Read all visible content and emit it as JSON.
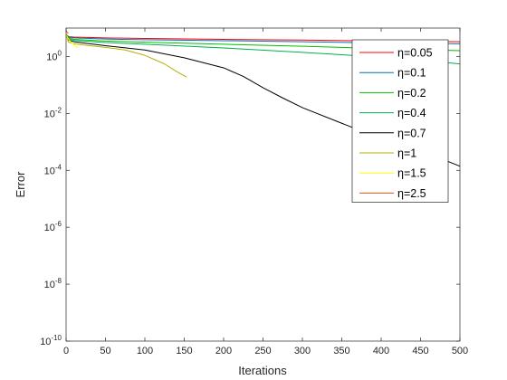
{
  "chart_data": {
    "type": "line",
    "xlabel": "Iterations",
    "ylabel": "Error",
    "xlim": [
      0,
      500
    ],
    "ylim": [
      1e-10,
      10
    ],
    "yscale": "log",
    "grid": false,
    "legend_position": "top-right",
    "x_ticks": [
      "0",
      "50",
      "100",
      "150",
      "200",
      "250",
      "300",
      "350",
      "400",
      "450",
      "500"
    ],
    "y_ticks": [
      {
        "base": "10",
        "exp": "0",
        "value": 1
      },
      {
        "base": "10",
        "exp": "-2",
        "value": 0.01
      },
      {
        "base": "10",
        "exp": "-4",
        "value": 0.0001
      },
      {
        "base": "10",
        "exp": "-6",
        "value": 1e-06
      },
      {
        "base": "10",
        "exp": "-8",
        "value": 1e-08
      },
      {
        "base": "10",
        "exp": "-10",
        "value": 1e-10
      }
    ],
    "series": [
      {
        "name": "η=0.05",
        "color": "#ff0000",
        "x": [
          0,
          3,
          10,
          50,
          100,
          200,
          300,
          400,
          500
        ],
        "y": [
          6.0,
          5.0,
          4.8,
          4.5,
          4.3,
          4.0,
          3.8,
          3.5,
          3.3
        ]
      },
      {
        "name": "η=0.1",
        "color": "#0072bd",
        "x": [
          0,
          3,
          10,
          50,
          100,
          200,
          300,
          400,
          500
        ],
        "y": [
          6.0,
          4.8,
          4.5,
          4.1,
          3.9,
          3.6,
          3.3,
          3.0,
          2.8
        ]
      },
      {
        "name": "η=0.2",
        "color": "#00c000",
        "x": [
          0,
          3,
          10,
          50,
          100,
          200,
          300,
          400,
          500
        ],
        "y": [
          6.0,
          4.5,
          4.0,
          3.5,
          3.2,
          2.7,
          2.3,
          1.9,
          1.6
        ]
      },
      {
        "name": "η=0.4",
        "color": "#00b050",
        "x": [
          0,
          3,
          10,
          50,
          100,
          200,
          300,
          400,
          450,
          500
        ],
        "y": [
          6.0,
          4.2,
          3.7,
          3.1,
          2.7,
          2.0,
          1.4,
          0.95,
          0.75,
          0.55
        ]
      },
      {
        "name": "η=0.7",
        "color": "#000000",
        "x": [
          0,
          3,
          10,
          30,
          50,
          100,
          150,
          200,
          225,
          250,
          275,
          300,
          350,
          400,
          450,
          500
        ],
        "y": [
          6.0,
          3.8,
          3.3,
          2.8,
          2.4,
          1.7,
          0.9,
          0.4,
          0.2,
          0.08,
          0.035,
          0.016,
          0.0045,
          0.0013,
          0.0005,
          0.00014
        ]
      },
      {
        "name": "η=1",
        "color": "#b5b000",
        "x": [
          0,
          3,
          10,
          30,
          50,
          75,
          100,
          125,
          140,
          153
        ],
        "y": [
          6.0,
          3.2,
          2.8,
          2.4,
          2.1,
          1.7,
          1.1,
          0.55,
          0.3,
          0.19
        ]
      },
      {
        "name": "η=1.5",
        "color": "#ffff00",
        "x": [
          0,
          2,
          5,
          10,
          15
        ],
        "y": [
          6.0,
          4.5,
          3.5,
          2.6,
          2.0
        ]
      },
      {
        "name": "η=2.5",
        "color": "#d95319",
        "x": [
          0,
          1,
          2,
          3
        ],
        "y": [
          8.0,
          7.2,
          6.8,
          6.5
        ]
      }
    ]
  }
}
